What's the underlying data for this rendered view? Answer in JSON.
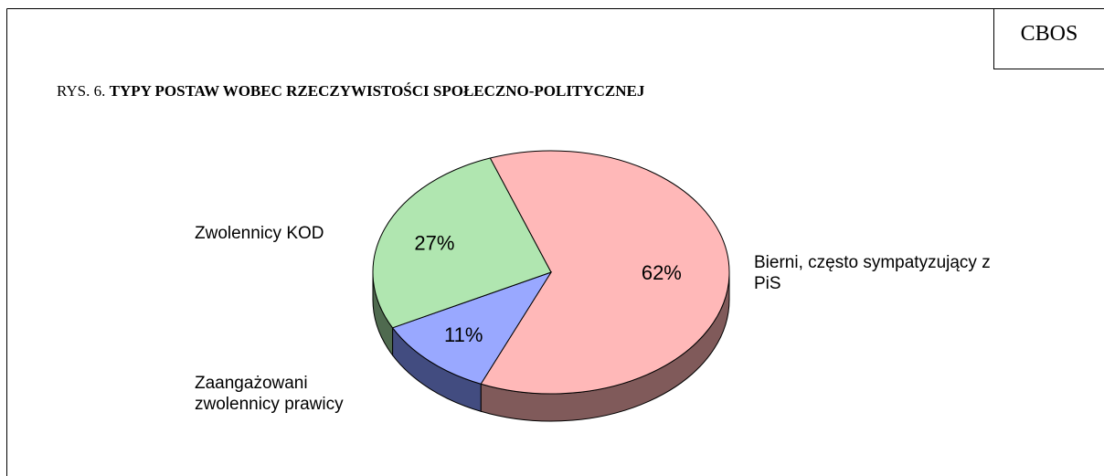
{
  "chart_data": {
    "type": "pie",
    "source": "CBOS",
    "figure_label": "RYS. 6.",
    "title": "TYPY POSTAW WOBEC RZECZYWISTOŚCI SPOŁECZNO-POLITYCZNEJ",
    "categories": [
      "Bierni, często sympatyzujący z PiS",
      "Zaangażowani zwolennicy prawicy",
      "Zwolennicy KOD"
    ],
    "values": [
      62,
      11,
      27
    ],
    "value_labels": [
      "62%",
      "11%",
      "27%"
    ],
    "colors": [
      "#ffb8b8",
      "#99a8ff",
      "#b0e6b0"
    ],
    "side_colors": [
      "#805a5a",
      "#424c80",
      "#4f6a4f"
    ]
  }
}
